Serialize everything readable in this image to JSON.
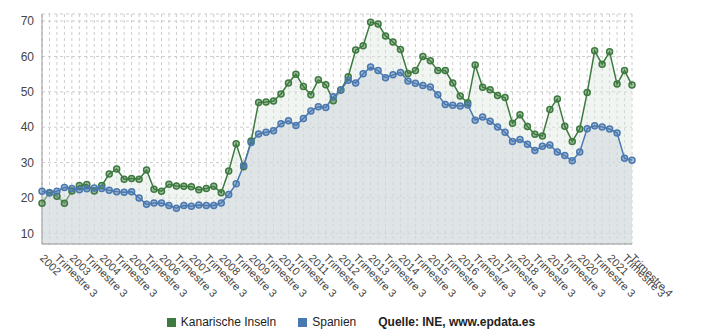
{
  "chart_data": {
    "type": "area",
    "categories": [
      "2002",
      null,
      "Trimestre 3",
      null,
      "2003",
      null,
      "Trimestre 3",
      null,
      "2004",
      null,
      "Trimestre 3",
      null,
      "2005",
      null,
      "Trimestre 3",
      null,
      "2006",
      null,
      "Trimestre 3",
      null,
      "2007",
      null,
      "Trimestre 3",
      null,
      "2008",
      null,
      "Trimestre 3",
      null,
      "2009",
      null,
      "Trimestre 3",
      null,
      "2010",
      null,
      "Trimestre 3",
      null,
      "2011",
      null,
      "Trimestre 3",
      null,
      "2012",
      null,
      "Trimestre 3",
      null,
      "2013",
      null,
      "Trimestre 3",
      null,
      "2014",
      null,
      "Trimestre 3",
      null,
      "2015",
      null,
      "Trimestre 3",
      null,
      "2016",
      null,
      "Trimestre 3",
      null,
      "2017",
      null,
      "Trimestre 3",
      null,
      "2018",
      null,
      "Trimestre 3",
      null,
      "2019",
      null,
      "Trimestre 3",
      null,
      "2020",
      null,
      "Trimestre 3",
      null,
      "2021",
      null,
      "Trimestre 3",
      "Trimestre 4"
    ],
    "series": [
      {
        "name": "Kanarische Inseln",
        "color": "#3d7a3f",
        "values": [
          18.5,
          21.5,
          20.5,
          18.5,
          22.0,
          23.5,
          23.8,
          22.0,
          23.5,
          26.8,
          28.2,
          25.3,
          25.5,
          25.3,
          27.9,
          22.5,
          21.9,
          23.9,
          23.4,
          23.3,
          23.2,
          22.3,
          22.7,
          23.3,
          21.5,
          27.6,
          35.3,
          28.8,
          36.1,
          47.0,
          47.1,
          47.4,
          49.4,
          52.5,
          55.0,
          51.5,
          49.2,
          53.4,
          52.0,
          47.5,
          50.5,
          54.3,
          61.8,
          63.0,
          69.7,
          69.2,
          65.8,
          64.1,
          62.0,
          55.2,
          56.0,
          60.0,
          58.8,
          56.0,
          56.0,
          52.5,
          48.8,
          46.9,
          57.6,
          51.3,
          50.6,
          49.0,
          48.4,
          41.1,
          43.5,
          40.2,
          38.0,
          37.5,
          45.0,
          48.0,
          40.3,
          36.0,
          39.5,
          49.8,
          61.6,
          57.8,
          61.3,
          52.2,
          56.0,
          51.9
        ]
      },
      {
        "name": "Spanien",
        "color": "#4a78b0",
        "values": [
          21.9,
          21.5,
          21.9,
          23.0,
          22.7,
          22.3,
          22.6,
          22.8,
          22.7,
          22.2,
          21.8,
          21.6,
          21.8,
          20.0,
          18.2,
          18.6,
          18.6,
          17.9,
          17.1,
          17.9,
          17.7,
          18.0,
          17.9,
          17.9,
          18.6,
          21.0,
          24.0,
          29.2,
          35.7,
          38.1,
          38.6,
          39.0,
          41.0,
          41.8,
          40.5,
          42.5,
          44.6,
          45.8,
          45.6,
          48.6,
          50.5,
          53.3,
          52.5,
          55.1,
          57.0,
          56.0,
          54.0,
          54.8,
          55.5,
          53.1,
          52.4,
          51.8,
          51.4,
          49.2,
          46.4,
          46.2,
          46.0,
          46.3,
          42.0,
          42.9,
          41.7,
          40.1,
          38.6,
          36.0,
          36.5,
          35.2,
          33.4,
          34.6,
          35.0,
          33.0,
          32.0,
          30.5,
          33.0,
          39.6,
          40.4,
          40.1,
          39.5,
          38.4,
          31.2,
          30.7
        ]
      }
    ],
    "ylim": [
      7,
      72
    ],
    "yticks": [
      10,
      20,
      30,
      40,
      50,
      60,
      70
    ],
    "grid": true,
    "legend": "bottom",
    "marker": "circle",
    "annotation": "Quelle: INE, www.epdata.es"
  }
}
